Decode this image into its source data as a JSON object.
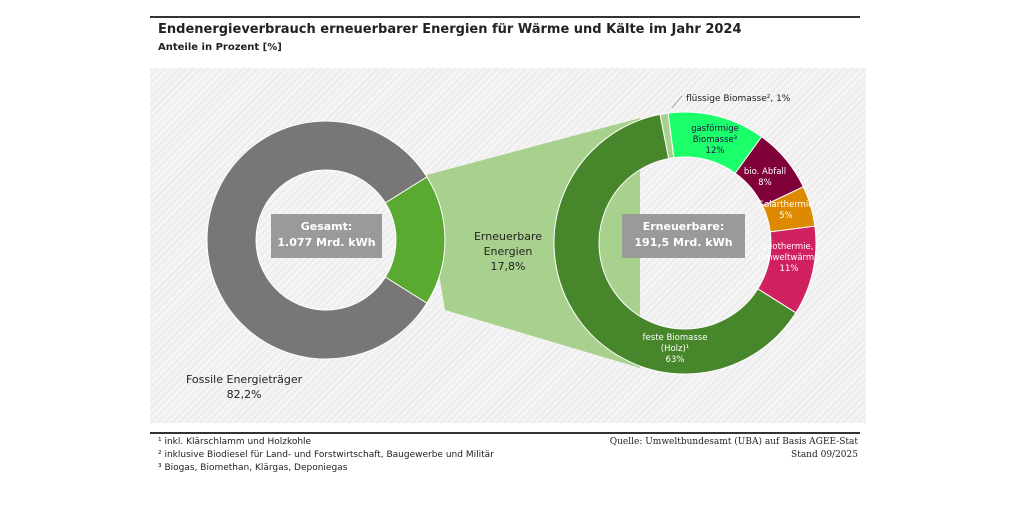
{
  "chart_data": {
    "type": "pie",
    "title": "Endenergieverbrauch erneuerbarer Energien für Wärme und Kälte im Jahr 2024",
    "subtitle": "Anteile in Prozent [%]",
    "total": {
      "center_label": "Gesamt:",
      "center_value": "1.077 Mrd. kWh",
      "slices": [
        {
          "name": "Fossile Energieträger",
          "value": 82.2,
          "label": "82,2%",
          "color": "#777777"
        },
        {
          "name": "Erneuerbare Energien",
          "value": 17.8,
          "label": "17,8%",
          "color": "#5aaa32"
        }
      ]
    },
    "renewable": {
      "center_label": "Erneuerbare:",
      "center_value": "191,5 Mrd. kWh",
      "slices": [
        {
          "name": "flüssige Biomasse²",
          "value": 1,
          "label": "flüssige Biomasse², 1%",
          "color": "#a8d08d"
        },
        {
          "name": "gasförmige Biomasse³",
          "value": 12,
          "label": "12%",
          "color": "#1aff6a"
        },
        {
          "name": "bio. Abfall",
          "value": 8,
          "label": "8%",
          "color": "#80003a"
        },
        {
          "name": "Solarthermie",
          "value": 5,
          "label": "5%",
          "color": "#dd8a00"
        },
        {
          "name": "Geothermie, Umweltwärme",
          "value": 11,
          "label": "11%",
          "color": "#d1205f"
        },
        {
          "name": "feste Biomasse (Holz)¹",
          "value": 63,
          "label": "63%",
          "color": "#47862a"
        }
      ]
    },
    "connector_color": "#a9d18e"
  },
  "footnotes": [
    "¹ inkl. Klärschlamm und Holzkohle",
    "² inklusive Biodiesel für Land- und Forstwirtschaft, Baugewerbe und Militär",
    "³ Biogas, Biomethan, Klärgas, Deponiegas"
  ],
  "source": "Quelle: Umweltbundesamt (UBA) auf Basis AGEE-Stat",
  "stand": "Stand 09/2025"
}
